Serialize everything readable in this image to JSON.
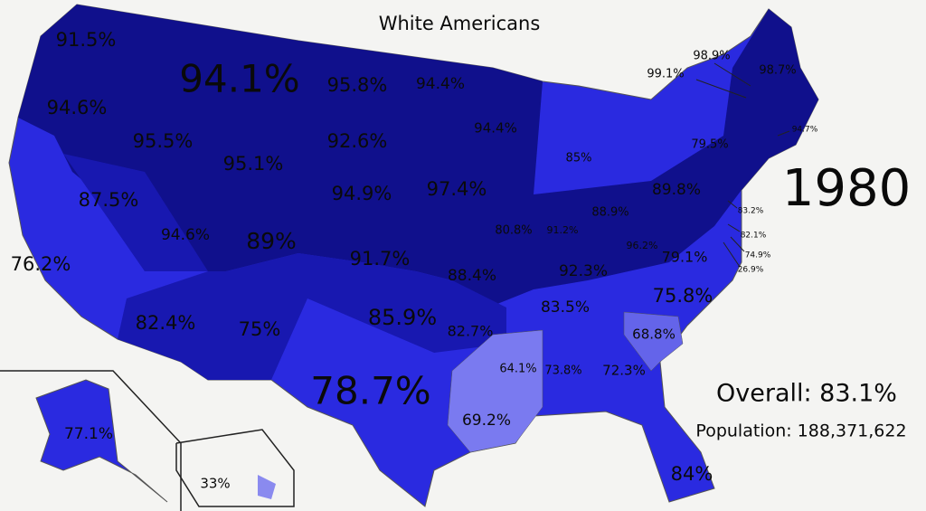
{
  "title": "White Americans",
  "year": "1980",
  "overall": "Overall: 83.1%",
  "population": "Population: 188,371,622",
  "states": [
    {
      "label": "91.5%"
    },
    {
      "label": "94.1%"
    },
    {
      "label": "95.8%"
    },
    {
      "label": "94.4%"
    },
    {
      "label": "94.6%"
    },
    {
      "label": "95.5%"
    },
    {
      "label": "92.6%"
    },
    {
      "label": "94.4%"
    },
    {
      "label": "85%"
    },
    {
      "label": "79.5%"
    },
    {
      "label": "98.7%"
    },
    {
      "label": "98.9%"
    },
    {
      "label": "99.1%"
    },
    {
      "label": "94.7%"
    },
    {
      "label": "95.1%"
    },
    {
      "label": "94.9%"
    },
    {
      "label": "97.4%"
    },
    {
      "label": "89.8%"
    },
    {
      "label": "83.2%"
    },
    {
      "label": "76.2%"
    },
    {
      "label": "87.5%"
    },
    {
      "label": "94.6%"
    },
    {
      "label": "89%"
    },
    {
      "label": "91.7%"
    },
    {
      "label": "88.4%"
    },
    {
      "label": "80.8%"
    },
    {
      "label": "91.2%"
    },
    {
      "label": "88.9%"
    },
    {
      "label": "96.2%"
    },
    {
      "label": "79.1%"
    },
    {
      "label": "82.1%"
    },
    {
      "label": "74.9%"
    },
    {
      "label": "26.9%"
    },
    {
      "label": "92.3%"
    },
    {
      "label": "83.5%"
    },
    {
      "label": "75.8%"
    },
    {
      "label": "82.4%"
    },
    {
      "label": "75%"
    },
    {
      "label": "85.9%"
    },
    {
      "label": "82.7%"
    },
    {
      "label": "68.8%"
    },
    {
      "label": "64.1%"
    },
    {
      "label": "73.8%"
    },
    {
      "label": "72.3%"
    },
    {
      "label": "78.7%"
    },
    {
      "label": "69.2%"
    },
    {
      "label": "84%"
    },
    {
      "label": "77.1%"
    },
    {
      "label": "33%"
    }
  ]
}
